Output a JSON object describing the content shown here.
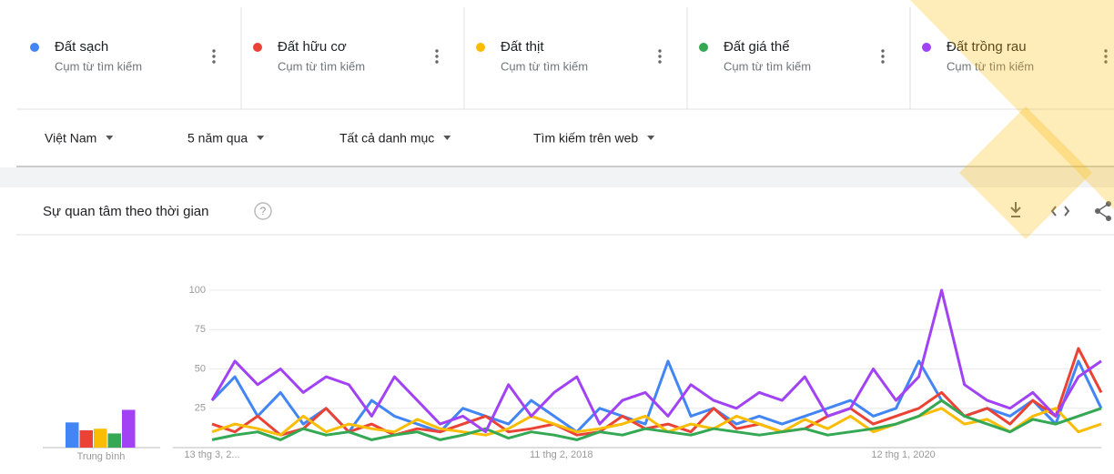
{
  "filters": [
    "Việt Nam",
    "5 năm qua",
    "Tất cả danh mục",
    "Tìm kiếm trên web"
  ],
  "term_subtitle": "Cụm từ tìm kiếm",
  "section_title": "Sự quan tâm theo thời gian",
  "chart_data": [
    {
      "type": "bar",
      "categories": [
        "Trung bình"
      ],
      "ylim": [
        0,
        100
      ],
      "series": [
        {
          "color": "#4285f4",
          "values": [
            16
          ]
        },
        {
          "color": "#ea4335",
          "values": [
            11
          ]
        },
        {
          "color": "#fbbc04",
          "values": [
            12
          ]
        },
        {
          "color": "#34a853",
          "values": [
            9
          ]
        },
        {
          "color": "#a142f4",
          "values": [
            24
          ]
        }
      ]
    },
    {
      "type": "line",
      "ylim": [
        0,
        100
      ],
      "yticks": [
        25,
        50,
        75,
        100
      ],
      "grid": true,
      "categories": [
        "13 thg 3, 2...",
        null,
        null,
        null,
        null,
        null,
        null,
        null,
        null,
        null,
        null,
        null,
        null,
        null,
        null,
        "11 thg 2, 2018",
        null,
        null,
        null,
        null,
        null,
        null,
        null,
        null,
        null,
        null,
        null,
        null,
        null,
        null,
        "12 thg 1, 2020",
        null,
        null,
        null,
        null,
        null,
        null,
        null,
        null,
        null
      ],
      "series": [
        {
          "name": "Đất sạch",
          "color": "#4285f4",
          "values": [
            30,
            45,
            20,
            35,
            15,
            25,
            10,
            30,
            20,
            15,
            10,
            25,
            20,
            15,
            30,
            20,
            10,
            25,
            20,
            15,
            55,
            20,
            25,
            15,
            20,
            15,
            20,
            25,
            30,
            20,
            25,
            55,
            30,
            20,
            25,
            20,
            30,
            15,
            55,
            25
          ]
        },
        {
          "name": "Đất hữu cơ",
          "color": "#ea4335",
          "values": [
            15,
            10,
            20,
            8,
            12,
            25,
            10,
            15,
            8,
            12,
            10,
            15,
            20,
            10,
            12,
            15,
            8,
            10,
            20,
            12,
            15,
            10,
            25,
            12,
            15,
            10,
            12,
            20,
            25,
            15,
            20,
            25,
            35,
            20,
            25,
            15,
            30,
            20,
            63,
            35
          ]
        },
        {
          "name": "Đất thịt",
          "color": "#fbbc04",
          "values": [
            10,
            15,
            12,
            8,
            20,
            10,
            15,
            12,
            10,
            18,
            12,
            10,
            8,
            12,
            20,
            15,
            10,
            12,
            15,
            20,
            10,
            15,
            12,
            20,
            15,
            10,
            18,
            12,
            20,
            10,
            15,
            20,
            25,
            15,
            18,
            10,
            20,
            25,
            10,
            15
          ]
        },
        {
          "name": "Đất giá thể",
          "color": "#34a853",
          "values": [
            5,
            8,
            10,
            5,
            12,
            8,
            10,
            5,
            8,
            10,
            5,
            8,
            12,
            6,
            10,
            8,
            5,
            10,
            8,
            12,
            10,
            8,
            12,
            10,
            8,
            10,
            12,
            8,
            10,
            12,
            15,
            20,
            30,
            20,
            15,
            10,
            18,
            15,
            20,
            25
          ]
        },
        {
          "name": "Đất trồng rau",
          "color": "#a142f4",
          "values": [
            30,
            55,
            40,
            50,
            35,
            45,
            40,
            20,
            45,
            30,
            15,
            20,
            10,
            40,
            20,
            35,
            45,
            15,
            30,
            35,
            20,
            40,
            30,
            25,
            35,
            30,
            45,
            20,
            25,
            50,
            30,
            45,
            100,
            40,
            30,
            25,
            35,
            20,
            45,
            55
          ]
        }
      ]
    }
  ]
}
